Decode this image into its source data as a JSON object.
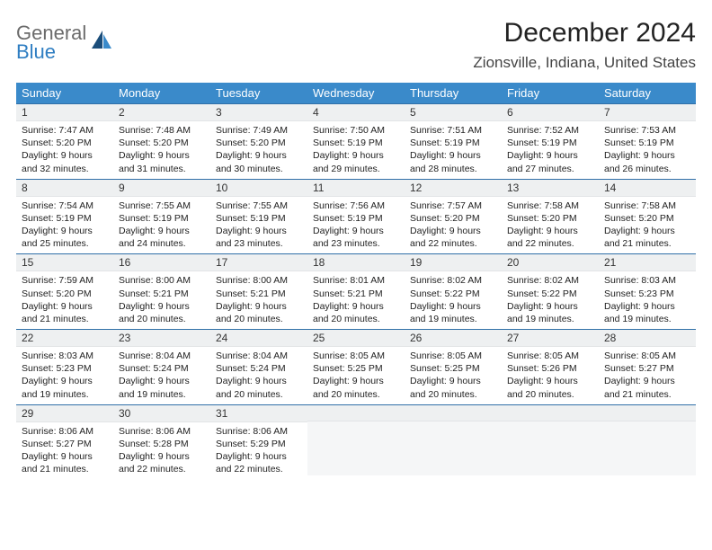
{
  "brand": {
    "line1": "General",
    "line2": "Blue",
    "line1_color": "#6b6b6b",
    "line2_color": "#2f7ec2",
    "icon_color_dark": "#1b4d7a",
    "icon_color_light": "#3a8aca"
  },
  "header": {
    "title": "December 2024",
    "location": "Zionsville, Indiana, United States"
  },
  "calendar": {
    "header_bg": "#3a8aca",
    "header_fg": "#ffffff",
    "week_border": "#2f6fa8",
    "daynum_bg": "#eef0f1",
    "weekdays": [
      "Sunday",
      "Monday",
      "Tuesday",
      "Wednesday",
      "Thursday",
      "Friday",
      "Saturday"
    ],
    "days": [
      {
        "n": "1",
        "sunrise": "7:47 AM",
        "sunset": "5:20 PM",
        "daylight": "9 hours and 32 minutes."
      },
      {
        "n": "2",
        "sunrise": "7:48 AM",
        "sunset": "5:20 PM",
        "daylight": "9 hours and 31 minutes."
      },
      {
        "n": "3",
        "sunrise": "7:49 AM",
        "sunset": "5:20 PM",
        "daylight": "9 hours and 30 minutes."
      },
      {
        "n": "4",
        "sunrise": "7:50 AM",
        "sunset": "5:19 PM",
        "daylight": "9 hours and 29 minutes."
      },
      {
        "n": "5",
        "sunrise": "7:51 AM",
        "sunset": "5:19 PM",
        "daylight": "9 hours and 28 minutes."
      },
      {
        "n": "6",
        "sunrise": "7:52 AM",
        "sunset": "5:19 PM",
        "daylight": "9 hours and 27 minutes."
      },
      {
        "n": "7",
        "sunrise": "7:53 AM",
        "sunset": "5:19 PM",
        "daylight": "9 hours and 26 minutes."
      },
      {
        "n": "8",
        "sunrise": "7:54 AM",
        "sunset": "5:19 PM",
        "daylight": "9 hours and 25 minutes."
      },
      {
        "n": "9",
        "sunrise": "7:55 AM",
        "sunset": "5:19 PM",
        "daylight": "9 hours and 24 minutes."
      },
      {
        "n": "10",
        "sunrise": "7:55 AM",
        "sunset": "5:19 PM",
        "daylight": "9 hours and 23 minutes."
      },
      {
        "n": "11",
        "sunrise": "7:56 AM",
        "sunset": "5:19 PM",
        "daylight": "9 hours and 23 minutes."
      },
      {
        "n": "12",
        "sunrise": "7:57 AM",
        "sunset": "5:20 PM",
        "daylight": "9 hours and 22 minutes."
      },
      {
        "n": "13",
        "sunrise": "7:58 AM",
        "sunset": "5:20 PM",
        "daylight": "9 hours and 22 minutes."
      },
      {
        "n": "14",
        "sunrise": "7:58 AM",
        "sunset": "5:20 PM",
        "daylight": "9 hours and 21 minutes."
      },
      {
        "n": "15",
        "sunrise": "7:59 AM",
        "sunset": "5:20 PM",
        "daylight": "9 hours and 21 minutes."
      },
      {
        "n": "16",
        "sunrise": "8:00 AM",
        "sunset": "5:21 PM",
        "daylight": "9 hours and 20 minutes."
      },
      {
        "n": "17",
        "sunrise": "8:00 AM",
        "sunset": "5:21 PM",
        "daylight": "9 hours and 20 minutes."
      },
      {
        "n": "18",
        "sunrise": "8:01 AM",
        "sunset": "5:21 PM",
        "daylight": "9 hours and 20 minutes."
      },
      {
        "n": "19",
        "sunrise": "8:02 AM",
        "sunset": "5:22 PM",
        "daylight": "9 hours and 19 minutes."
      },
      {
        "n": "20",
        "sunrise": "8:02 AM",
        "sunset": "5:22 PM",
        "daylight": "9 hours and 19 minutes."
      },
      {
        "n": "21",
        "sunrise": "8:03 AM",
        "sunset": "5:23 PM",
        "daylight": "9 hours and 19 minutes."
      },
      {
        "n": "22",
        "sunrise": "8:03 AM",
        "sunset": "5:23 PM",
        "daylight": "9 hours and 19 minutes."
      },
      {
        "n": "23",
        "sunrise": "8:04 AM",
        "sunset": "5:24 PM",
        "daylight": "9 hours and 19 minutes."
      },
      {
        "n": "24",
        "sunrise": "8:04 AM",
        "sunset": "5:24 PM",
        "daylight": "9 hours and 20 minutes."
      },
      {
        "n": "25",
        "sunrise": "8:05 AM",
        "sunset": "5:25 PM",
        "daylight": "9 hours and 20 minutes."
      },
      {
        "n": "26",
        "sunrise": "8:05 AM",
        "sunset": "5:25 PM",
        "daylight": "9 hours and 20 minutes."
      },
      {
        "n": "27",
        "sunrise": "8:05 AM",
        "sunset": "5:26 PM",
        "daylight": "9 hours and 20 minutes."
      },
      {
        "n": "28",
        "sunrise": "8:05 AM",
        "sunset": "5:27 PM",
        "daylight": "9 hours and 21 minutes."
      },
      {
        "n": "29",
        "sunrise": "8:06 AM",
        "sunset": "5:27 PM",
        "daylight": "9 hours and 21 minutes."
      },
      {
        "n": "30",
        "sunrise": "8:06 AM",
        "sunset": "5:28 PM",
        "daylight": "9 hours and 22 minutes."
      },
      {
        "n": "31",
        "sunrise": "8:06 AM",
        "sunset": "5:29 PM",
        "daylight": "9 hours and 22 minutes."
      }
    ],
    "labels": {
      "sunrise": "Sunrise:",
      "sunset": "Sunset:",
      "daylight": "Daylight:"
    },
    "trailing_blanks": 4
  }
}
